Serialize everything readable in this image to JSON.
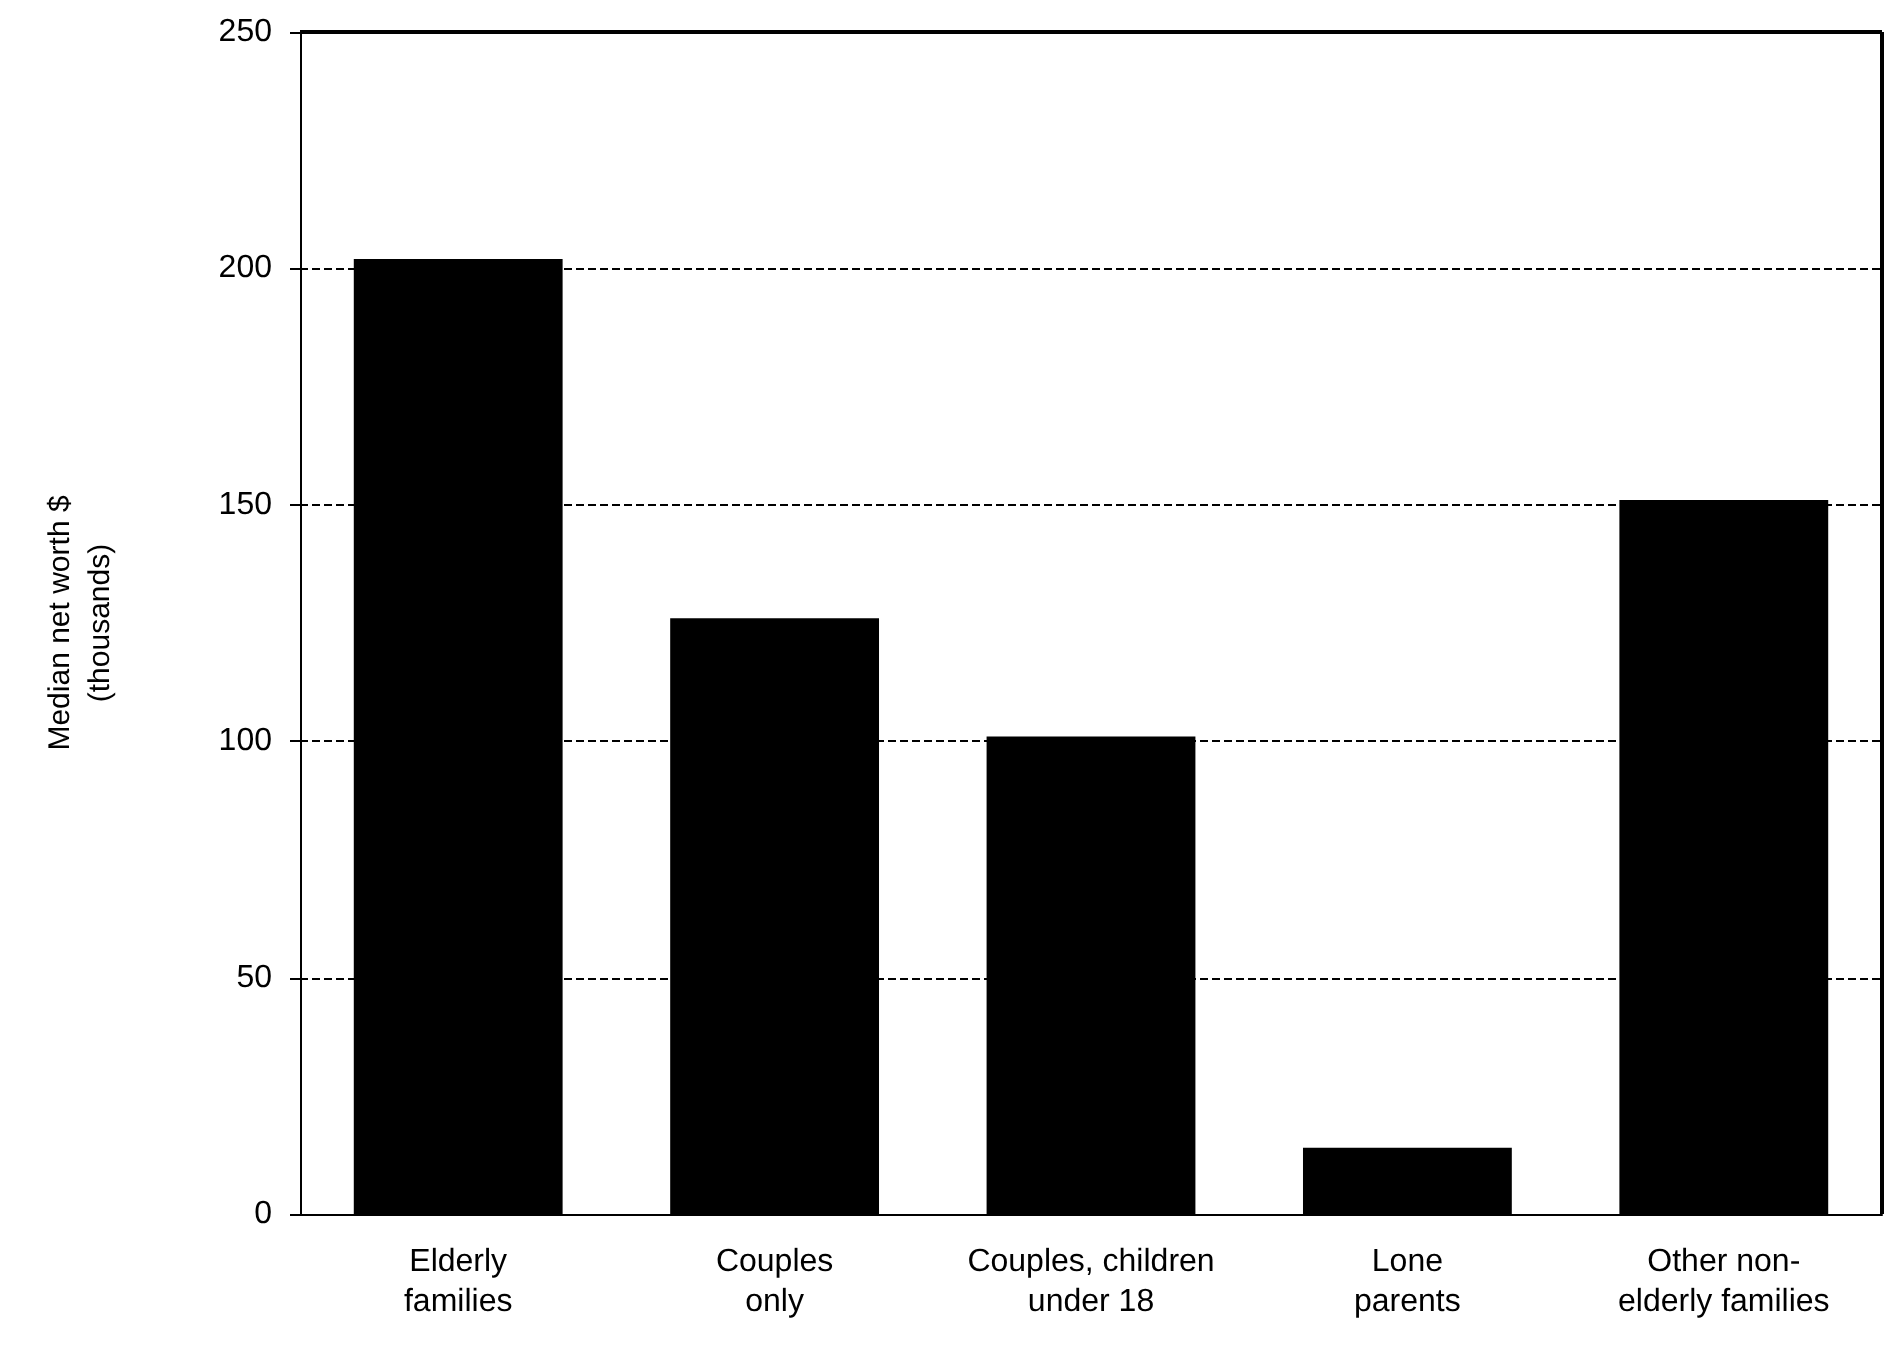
{
  "chart_data": {
    "type": "bar",
    "ylabel": "Median net worth $\n(thousands)",
    "categories": [
      "Elderly\nfamilies",
      "Couples\nonly",
      "Couples, children\nunder 18",
      "Lone\nparents",
      "Other non-\nelderly families"
    ],
    "values": [
      202,
      126,
      101,
      14,
      151
    ],
    "color": "#000000",
    "ylim": [
      0,
      250
    ],
    "yticks": [
      0,
      50,
      100,
      150,
      200,
      250
    ],
    "grid": "y"
  }
}
